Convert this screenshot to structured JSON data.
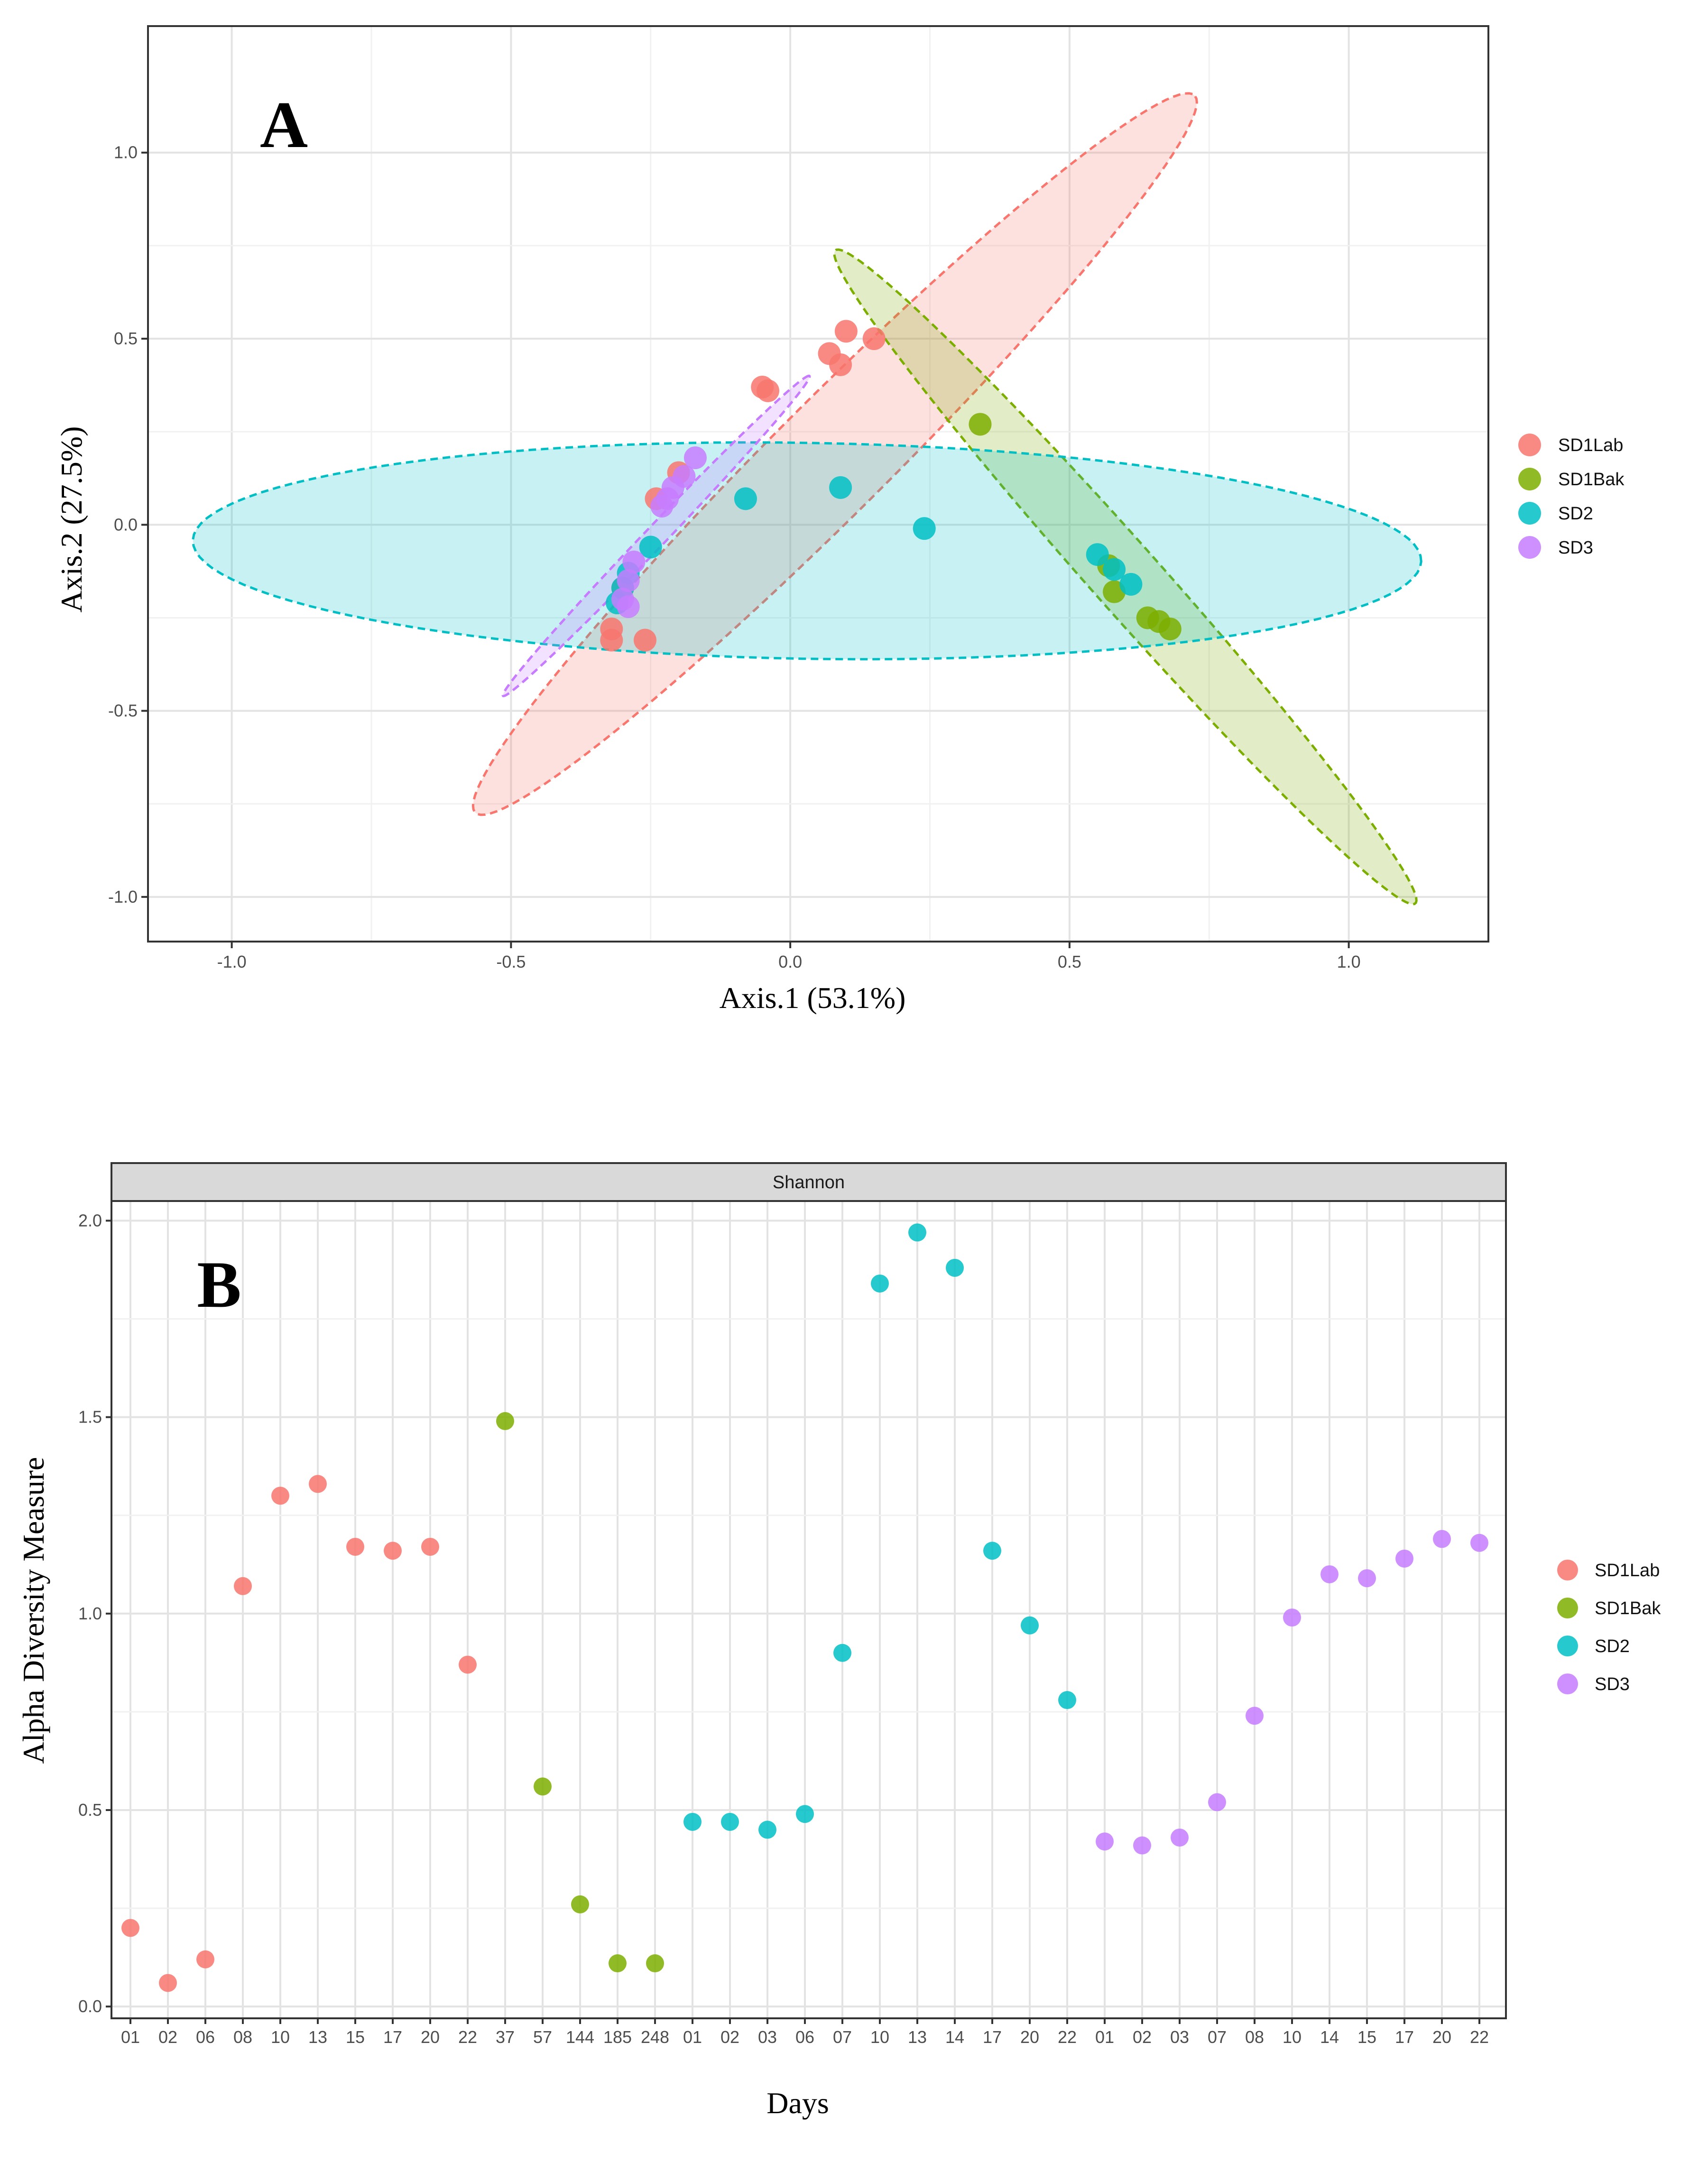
{
  "chart_data": [
    {
      "type": "scatter",
      "panel_label": "A",
      "xlabel": "Axis.1 (53.1%)",
      "ylabel": "Axis.2 (27.5%)",
      "xlim": [
        -1.15,
        1.25
      ],
      "ylim": [
        -1.12,
        1.34
      ],
      "xticks": [
        -1.0,
        -0.5,
        0.0,
        0.5,
        1.0
      ],
      "yticks": [
        -1.0,
        -0.5,
        0.0,
        0.5,
        1.0
      ],
      "xtick_labels": [
        "-1.0",
        "-0.5",
        "0.0",
        "0.5",
        "1.0"
      ],
      "ytick_labels": [
        "-1.0",
        "-0.5",
        "0.0",
        "0.5",
        "1.0"
      ],
      "grid": true,
      "legend": {
        "position": "right",
        "entries": [
          "SD1Lab",
          "SD1Bak",
          "SD2",
          "SD3"
        ]
      },
      "series": [
        {
          "name": "SD1Lab",
          "color": "#F8766D",
          "points": [
            [
              0.1,
              0.52
            ],
            [
              0.15,
              0.5
            ],
            [
              0.07,
              0.46
            ],
            [
              0.09,
              0.43
            ],
            [
              -0.05,
              0.37
            ],
            [
              -0.04,
              0.36
            ],
            [
              -0.32,
              -0.28
            ],
            [
              -0.32,
              -0.31
            ],
            [
              -0.26,
              -0.31
            ],
            [
              -0.3,
              -0.17
            ],
            [
              -0.24,
              0.07
            ],
            [
              -0.2,
              0.14
            ]
          ],
          "ellipse": {
            "cx": 0.08,
            "cy": 0.19,
            "a": 1.16,
            "b": 0.12,
            "angle_deg": 56.5
          }
        },
        {
          "name": "SD1Bak",
          "color": "#7CAE00",
          "points": [
            [
              0.34,
              0.27
            ],
            [
              0.58,
              -0.18
            ],
            [
              0.64,
              -0.25
            ],
            [
              0.66,
              -0.26
            ],
            [
              0.68,
              -0.28
            ],
            [
              0.57,
              -0.11
            ]
          ],
          "ellipse": {
            "cx": 0.6,
            "cy": -0.14,
            "a": 1.02,
            "b": 0.07,
            "angle_deg": -59.5
          }
        },
        {
          "name": "SD2",
          "color": "#00BFC4",
          "points": [
            [
              -0.08,
              0.07
            ],
            [
              0.09,
              0.1
            ],
            [
              0.24,
              -0.01
            ],
            [
              0.55,
              -0.08
            ],
            [
              0.58,
              -0.12
            ],
            [
              0.61,
              -0.16
            ],
            [
              -0.25,
              -0.06
            ],
            [
              -0.29,
              -0.13
            ],
            [
              -0.3,
              -0.17
            ],
            [
              -0.31,
              -0.21
            ]
          ],
          "ellipse": {
            "cx": 0.03,
            "cy": -0.07,
            "a": 1.1,
            "b": 0.29,
            "angle_deg": -1.5
          }
        },
        {
          "name": "SD3",
          "color": "#C77CFF",
          "points": [
            [
              -0.17,
              0.18
            ],
            [
              -0.19,
              0.13
            ],
            [
              -0.21,
              0.1
            ],
            [
              -0.22,
              0.07
            ],
            [
              -0.23,
              0.05
            ],
            [
              -0.28,
              -0.1
            ],
            [
              -0.29,
              -0.15
            ],
            [
              -0.3,
              -0.2
            ],
            [
              -0.29,
              -0.22
            ]
          ],
          "ellipse": {
            "cx": -0.24,
            "cy": -0.03,
            "a": 0.51,
            "b": 0.022,
            "angle_deg": 57.5
          }
        }
      ]
    },
    {
      "type": "scatter",
      "panel_label": "B",
      "facet_title": "Shannon",
      "xlabel": "Days",
      "ylabel": "Alpha Diversity Measure",
      "ylim": [
        -0.03,
        2.05
      ],
      "yticks": [
        0.0,
        0.5,
        1.0,
        1.5,
        2.0
      ],
      "ytick_labels": [
        "0.0",
        "0.5",
        "1.0",
        "1.5",
        "2.0"
      ],
      "grid": true,
      "legend": {
        "position": "right",
        "entries": [
          "SD1Lab",
          "SD1Bak",
          "SD2",
          "SD3"
        ]
      },
      "categories": [
        "01",
        "02",
        "06",
        "08",
        "10",
        "13",
        "15",
        "17",
        "20",
        "22",
        "37",
        "57",
        "144",
        "185",
        "248",
        "01",
        "02",
        "03",
        "06",
        "07",
        "10",
        "13",
        "14",
        "17",
        "20",
        "22",
        "01",
        "02",
        "03",
        "07",
        "08",
        "10",
        "14",
        "15",
        "17",
        "20",
        "22"
      ],
      "series": [
        {
          "name": "SD1Lab",
          "color": "#F8766D",
          "start_index": 0,
          "values": [
            0.2,
            0.06,
            0.12,
            1.07,
            1.3,
            1.33,
            1.17,
            1.16,
            1.17,
            0.87
          ]
        },
        {
          "name": "SD1Bak",
          "color": "#7CAE00",
          "start_index": 10,
          "values": [
            1.49,
            0.56,
            0.26,
            0.11,
            0.11
          ]
        },
        {
          "name": "SD2",
          "color": "#00BFC4",
          "start_index": 15,
          "values": [
            0.47,
            0.47,
            0.45,
            0.49,
            0.9,
            1.84,
            1.97,
            1.88,
            1.16,
            0.97,
            0.78
          ]
        },
        {
          "name": "SD3",
          "color": "#C77CFF",
          "start_index": 26,
          "values": [
            0.42,
            0.41,
            0.43,
            0.52,
            0.74,
            0.99,
            1.1,
            1.09,
            1.14,
            1.19,
            1.18
          ]
        }
      ]
    }
  ]
}
